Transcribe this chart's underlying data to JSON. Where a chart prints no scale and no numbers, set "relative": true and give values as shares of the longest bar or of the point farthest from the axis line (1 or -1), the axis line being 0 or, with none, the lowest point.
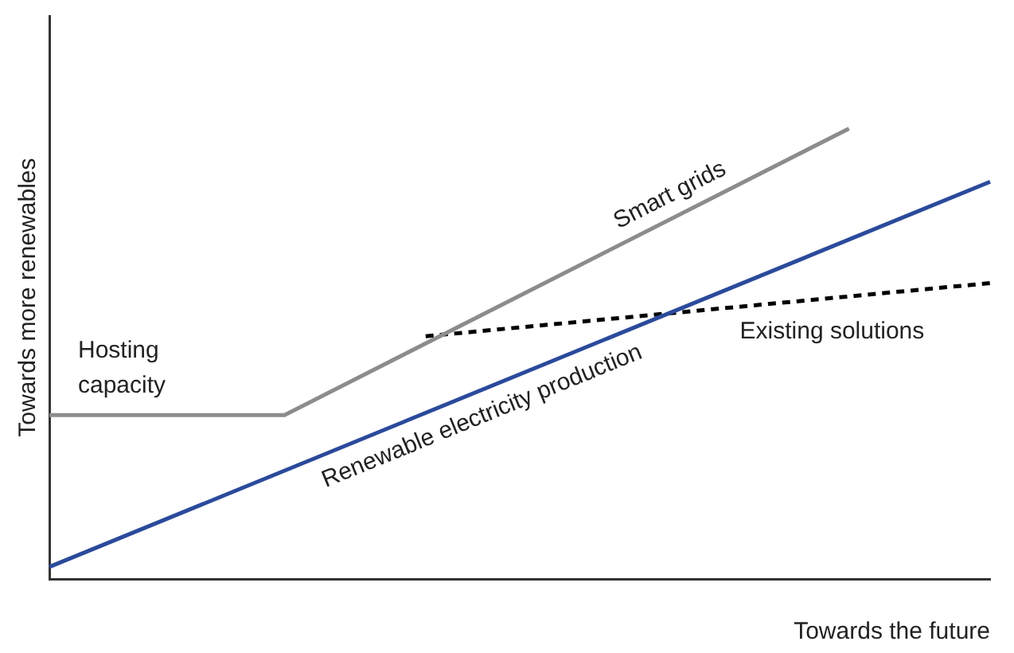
{
  "chart_data": {
    "type": "line",
    "relative": true,
    "xlabel": "Towards the future",
    "ylabel": "Towards more renewables",
    "categories": [
      null,
      null,
      null,
      null,
      null,
      null,
      null,
      null,
      null,
      null,
      null,
      null,
      null,
      null,
      null,
      null,
      null,
      null,
      null,
      null,
      null
    ],
    "series": [
      {
        "name": "Smart grids",
        "color": "#8c8c8c",
        "values": [
          0.364,
          null,
          null,
          null,
          null,
          0.364,
          null,
          null,
          null,
          null,
          null,
          null,
          null,
          null,
          null,
          null,
          null,
          1.0,
          null,
          null,
          null
        ]
      },
      {
        "name": "Renewable electricity production",
        "color": "#2b4a9b",
        "values": [
          0.027,
          null,
          null,
          null,
          null,
          null,
          null,
          null,
          null,
          null,
          null,
          null,
          null,
          null,
          null,
          null,
          null,
          null,
          null,
          null,
          0.882
        ]
      },
      {
        "name": "Existing solutions",
        "color": "#000000",
        "line_style": "dashed",
        "values": [
          null,
          null,
          null,
          null,
          null,
          null,
          null,
          null,
          0.539,
          null,
          null,
          null,
          null,
          null,
          null,
          null,
          null,
          null,
          null,
          null,
          0.657
        ]
      }
    ],
    "annotations": [
      "Hosting capacity"
    ],
    "legend": false,
    "grid": false,
    "marker": "none"
  }
}
